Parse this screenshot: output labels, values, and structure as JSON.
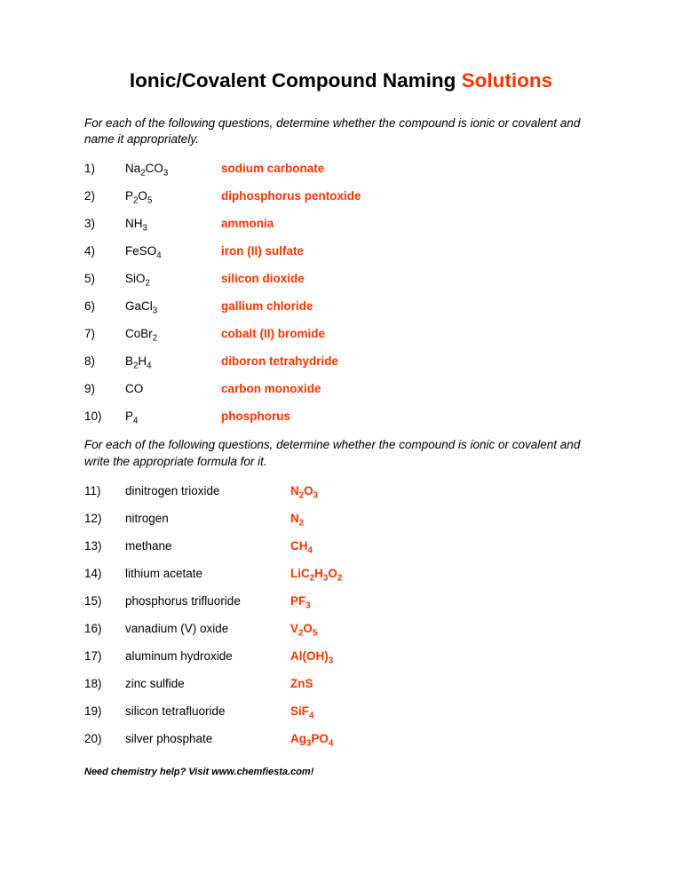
{
  "title_main": "Ionic/Covalent Compound Naming ",
  "title_red": "Solutions",
  "instructions1": "For each of the following questions, determine whether the compound is ionic or covalent and name it appropriately.",
  "instructions2": "For each of the following questions, determine whether the compound is ionic or covalent and write the appropriate formula for it.",
  "section1": [
    {
      "n": "1)",
      "formula": "Na<sub>2</sub>CO<sub>3</sub>",
      "answer": "sodium carbonate"
    },
    {
      "n": "2)",
      "formula": "P<sub>2</sub>O<sub>5</sub>",
      "answer": "diphosphorus pentoxide"
    },
    {
      "n": "3)",
      "formula": "NH<sub>3</sub>",
      "answer": "ammonia"
    },
    {
      "n": "4)",
      "formula": "FeSO<sub>4</sub>",
      "answer": "iron (II) sulfate"
    },
    {
      "n": "5)",
      "formula": "SiO<sub>2</sub>",
      "answer": "silicon dioxide"
    },
    {
      "n": "6)",
      "formula": "GaCl<sub>3</sub>",
      "answer": "gallium chloride"
    },
    {
      "n": "7)",
      "formula": "CoBr<sub>2</sub>",
      "answer": "cobalt (II) bromide"
    },
    {
      "n": "8)",
      "formula": "B<sub>2</sub>H<sub>4</sub>",
      "answer": "diboron tetrahydride"
    },
    {
      "n": "9)",
      "formula": "CO",
      "answer": "carbon monoxide"
    },
    {
      "n": "10)",
      "formula": "P<sub>4</sub>",
      "answer": "phosphorus"
    }
  ],
  "section2": [
    {
      "n": "11)",
      "name": "dinitrogen trioxide",
      "answer": "N<sub>2</sub>O<sub>3</sub>"
    },
    {
      "n": "12)",
      "name": "nitrogen",
      "answer": "N<sub>2</sub>"
    },
    {
      "n": "13)",
      "name": "methane",
      "answer": "CH<sub>4</sub>"
    },
    {
      "n": "14)",
      "name": "lithium acetate",
      "answer": "LiC<sub>2</sub>H<sub>3</sub>O<sub>2</sub>"
    },
    {
      "n": "15)",
      "name": "phosphorus trifluoride",
      "answer": "PF<sub>3</sub>"
    },
    {
      "n": "16)",
      "name": "vanadium (V) oxide",
      "answer": "V<sub>2</sub>O<sub>5</sub>"
    },
    {
      "n": "17)",
      "name": "aluminum hydroxide",
      "answer": "Al(OH)<sub>3</sub>"
    },
    {
      "n": "18)",
      "name": "zinc sulfide",
      "answer": "ZnS"
    },
    {
      "n": "19)",
      "name": "silicon tetrafluoride",
      "answer": "SiF<sub>4</sub>"
    },
    {
      "n": "20)",
      "name": "silver phosphate",
      "answer": "Ag<sub>3</sub>PO<sub>4</sub>"
    }
  ],
  "footer": "Need chemistry help?  Visit www.chemfiesta.com!",
  "colors": {
    "answer": "#ff3300",
    "text": "#000000",
    "background": "#ffffff"
  },
  "typography": {
    "title_fontsize": 22.5,
    "body_fontsize": 13.5,
    "footer_fontsize": 11,
    "font_family": "Arial"
  }
}
